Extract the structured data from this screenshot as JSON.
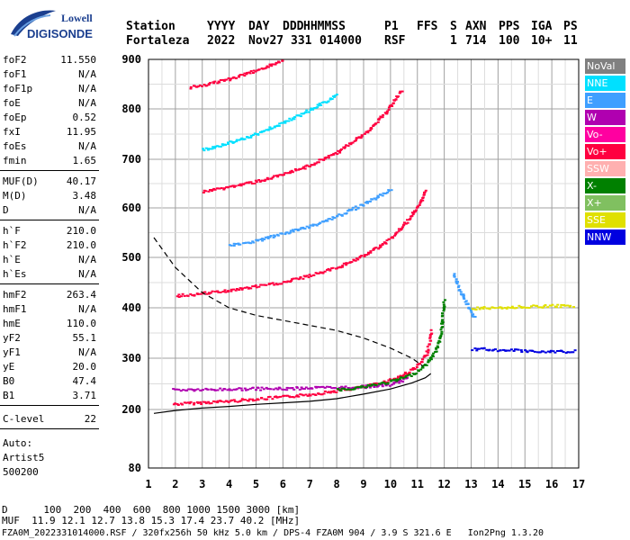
{
  "logo": {
    "line1": "Lowell",
    "line2": "DIGISONDE"
  },
  "header": {
    "labels": [
      "Station",
      "YYYY",
      "DAY",
      "DDD",
      "HHMMSS",
      "P1",
      "FFS",
      "S",
      "AXN",
      "PPS",
      "IGA",
      "PS"
    ],
    "values": [
      "Fortaleza",
      "2022",
      "Nov27",
      "331",
      "014000",
      "RSF",
      "1",
      "714",
      "100",
      "10+",
      "11"
    ]
  },
  "params": {
    "group1": [
      {
        "k": "foF2",
        "v": "11.550"
      },
      {
        "k": "foF1",
        "v": "N/A"
      },
      {
        "k": "foF1p",
        "v": "N/A"
      },
      {
        "k": "foE",
        "v": "N/A"
      },
      {
        "k": "foEp",
        "v": "0.52"
      },
      {
        "k": "fxI",
        "v": "11.95"
      },
      {
        "k": "foEs",
        "v": "N/A"
      },
      {
        "k": "fmin",
        "v": "1.65"
      }
    ],
    "group2": [
      {
        "k": "MUF(D)",
        "v": "40.17"
      },
      {
        "k": "M(D)",
        "v": "3.48"
      },
      {
        "k": "D",
        "v": "N/A"
      }
    ],
    "group3": [
      {
        "k": "h`F",
        "v": "210.0"
      },
      {
        "k": "h`F2",
        "v": "210.0"
      },
      {
        "k": "h`E",
        "v": "N/A"
      },
      {
        "k": "h`Es",
        "v": "N/A"
      }
    ],
    "group4": [
      {
        "k": "hmF2",
        "v": "263.4"
      },
      {
        "k": "hmF1",
        "v": "N/A"
      },
      {
        "k": "hmE",
        "v": "110.0"
      },
      {
        "k": "yF2",
        "v": "55.1"
      },
      {
        "k": "yF1",
        "v": "N/A"
      },
      {
        "k": "yE",
        "v": "20.0"
      },
      {
        "k": "B0",
        "v": "47.4"
      },
      {
        "k": "B1",
        "v": "3.71"
      }
    ],
    "group5": [
      {
        "k": "C-level",
        "v": "22"
      }
    ],
    "auto": [
      "Auto:",
      "Artist5",
      "500200"
    ]
  },
  "legend": [
    {
      "label": "NoVal",
      "color": "#808080"
    },
    {
      "label": "NNE",
      "color": "#00e0ff"
    },
    {
      "label": "E",
      "color": "#3f9fff"
    },
    {
      "label": "W",
      "color": "#b000b0"
    },
    {
      "label": "Vo-",
      "color": "#ff00a0"
    },
    {
      "label": "Vo+",
      "color": "#ff0040"
    },
    {
      "label": "SSW",
      "color": "#ffb0b0"
    },
    {
      "label": "X-",
      "color": "#008000"
    },
    {
      "label": "X+",
      "color": "#80c060"
    },
    {
      "label": "SSE",
      "color": "#e0e000"
    },
    {
      "label": "NNW",
      "color": "#0000e0"
    }
  ],
  "footer": {
    "line1": "D      100  200  400  600  800 1000 1500 3000 [km]",
    "line2": "MUF  11.9 12.1 12.7 13.8 15.3 17.4 23.7 40.2 [MHz]",
    "line3": "FZA0M_2022331014000.RSF / 320fx256h 50 kHz 5.0 km / DPS-4 FZA0M 904 / 3.9 S 321.6 E   Ion2Png 1.3.20"
  },
  "chart_data": {
    "type": "scatter",
    "xlim": [
      1,
      17
    ],
    "ylim": [
      80,
      900
    ],
    "x_ticks": [
      1,
      2,
      3,
      4,
      5,
      6,
      7,
      8,
      9,
      10,
      11,
      12,
      13,
      14,
      15,
      16,
      17
    ],
    "y_ticks": [
      80,
      200,
      300,
      400,
      500,
      600,
      700,
      800,
      900
    ],
    "grid": true,
    "traces": [
      {
        "name": "o-trace 1st hop",
        "color": "#ff0040",
        "points": [
          [
            1.9,
            212
          ],
          [
            3,
            215
          ],
          [
            4,
            218
          ],
          [
            5,
            222
          ],
          [
            6,
            226
          ],
          [
            7,
            231
          ],
          [
            8,
            238
          ],
          [
            9,
            246
          ],
          [
            9.8,
            256
          ],
          [
            10.4,
            268
          ],
          [
            10.8,
            280
          ],
          [
            11.1,
            293
          ],
          [
            11.3,
            310
          ],
          [
            11.45,
            340
          ],
          [
            11.5,
            360
          ]
        ]
      },
      {
        "name": "W band",
        "color": "#b000b0",
        "points": [
          [
            1.9,
            240
          ],
          [
            3,
            240
          ],
          [
            4,
            241
          ],
          [
            5,
            242
          ],
          [
            6,
            242
          ],
          [
            7,
            244
          ],
          [
            8,
            244
          ],
          [
            9,
            246
          ],
          [
            10,
            250
          ],
          [
            10.6,
            262
          ]
        ]
      },
      {
        "name": "x-trace",
        "color": "#008000",
        "points": [
          [
            8,
            240
          ],
          [
            9,
            246
          ],
          [
            10,
            256
          ],
          [
            10.8,
            270
          ],
          [
            11.3,
            290
          ],
          [
            11.6,
            312
          ],
          [
            11.8,
            340
          ],
          [
            11.9,
            380
          ],
          [
            11.95,
            420
          ]
        ]
      },
      {
        "name": "o-trace 2nd hop",
        "color": "#ff0040",
        "points": [
          [
            2,
            425
          ],
          [
            3,
            430
          ],
          [
            4,
            436
          ],
          [
            5,
            444
          ],
          [
            6,
            452
          ],
          [
            7,
            466
          ],
          [
            8,
            482
          ],
          [
            9,
            505
          ],
          [
            10,
            540
          ],
          [
            10.6,
            575
          ],
          [
            11,
            605
          ],
          [
            11.3,
            640
          ]
        ]
      },
      {
        "name": "o-trace 3rd hop",
        "color": "#ff0040",
        "points": [
          [
            3,
            635
          ],
          [
            4,
            645
          ],
          [
            5,
            656
          ],
          [
            6,
            670
          ],
          [
            7,
            690
          ],
          [
            8,
            716
          ],
          [
            9,
            752
          ],
          [
            9.8,
            795
          ],
          [
            10.4,
            840
          ]
        ]
      },
      {
        "name": "o-trace 4th hop",
        "color": "#ff0040",
        "points": [
          [
            2.5,
            845
          ],
          [
            3.5,
            855
          ],
          [
            4.5,
            870
          ],
          [
            5.5,
            890
          ],
          [
            6,
            900
          ]
        ]
      },
      {
        "name": "echoes 2nd hop",
        "color": "#3f9fff",
        "points": [
          [
            4,
            525
          ],
          [
            5,
            535
          ],
          [
            6,
            550
          ],
          [
            7,
            565
          ],
          [
            8,
            585
          ],
          [
            9,
            610
          ],
          [
            10,
            640
          ]
        ]
      },
      {
        "name": "echoes 3rd hop",
        "color": "#00e0ff",
        "points": [
          [
            3,
            720
          ],
          [
            4,
            735
          ],
          [
            5,
            752
          ],
          [
            6,
            775
          ],
          [
            7,
            800
          ],
          [
            8,
            830
          ]
        ]
      },
      {
        "name": "oblique spread",
        "color": "#3f9fff",
        "points": [
          [
            12.3,
            470
          ],
          [
            12.5,
            440
          ],
          [
            12.7,
            420
          ],
          [
            12.9,
            400
          ],
          [
            13.1,
            380
          ]
        ]
      },
      {
        "name": "upper band 400",
        "color": "#e0e000",
        "points": [
          [
            13,
            400
          ],
          [
            14,
            402
          ],
          [
            15,
            404
          ],
          [
            16,
            405
          ],
          [
            16.8,
            405
          ]
        ]
      },
      {
        "name": "lower band 320",
        "color": "#0000e0",
        "points": [
          [
            13,
            320
          ],
          [
            14,
            318
          ],
          [
            15,
            316
          ],
          [
            16,
            315
          ],
          [
            16.9,
            315
          ]
        ]
      }
    ],
    "profile_dashed": [
      [
        1.2,
        540
      ],
      [
        2,
        480
      ],
      [
        3,
        430
      ],
      [
        4,
        400
      ],
      [
        5,
        385
      ],
      [
        6,
        375
      ],
      [
        7,
        365
      ],
      [
        8,
        355
      ],
      [
        9,
        340
      ],
      [
        10,
        320
      ],
      [
        10.8,
        300
      ],
      [
        11.2,
        285
      ]
    ],
    "profile_solid": [
      [
        1.2,
        192
      ],
      [
        2,
        198
      ],
      [
        3,
        203
      ],
      [
        4,
        206
      ],
      [
        5,
        210
      ],
      [
        6,
        213
      ],
      [
        7,
        216
      ],
      [
        8,
        221
      ],
      [
        9,
        230
      ],
      [
        10,
        240
      ],
      [
        10.8,
        252
      ],
      [
        11.3,
        262
      ],
      [
        11.5,
        270
      ]
    ]
  }
}
